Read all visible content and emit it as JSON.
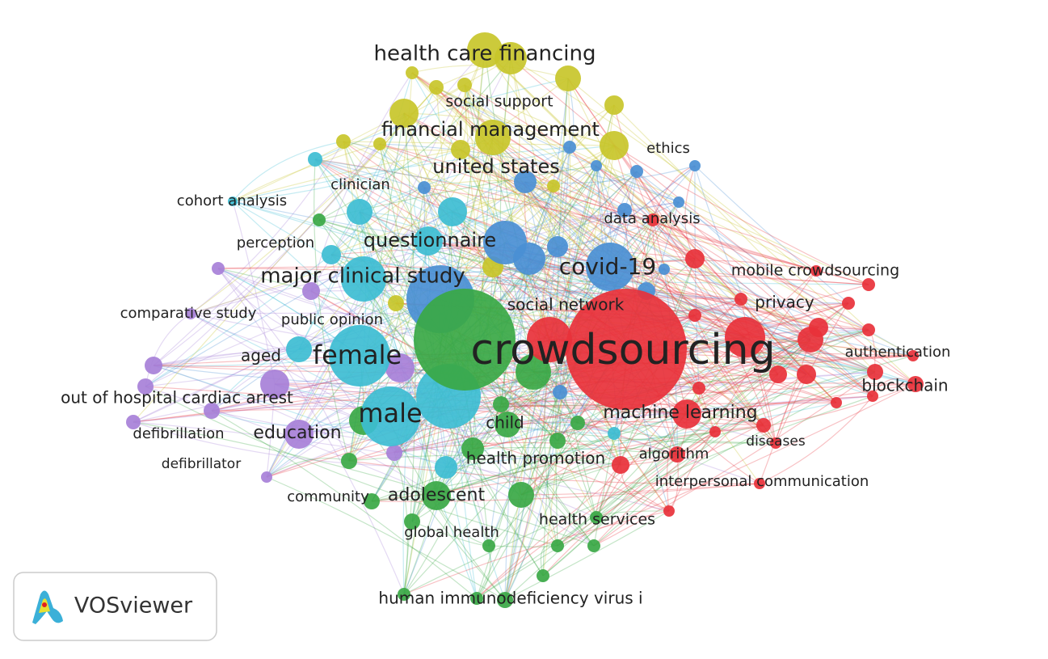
{
  "network": {
    "nodes": [
      {
        "label": "health care financing"
      },
      {
        "label": "social support"
      },
      {
        "label": "financial management"
      },
      {
        "label": "ethics"
      },
      {
        "label": "united states"
      },
      {
        "label": "clinician"
      },
      {
        "label": "cohort analysis"
      },
      {
        "label": "data analysis"
      },
      {
        "label": "perception"
      },
      {
        "label": "questionnaire"
      },
      {
        "label": "mobile crowdsourcing"
      },
      {
        "label": "covid-19"
      },
      {
        "label": "major clinical study"
      },
      {
        "label": "social network"
      },
      {
        "label": "privacy"
      },
      {
        "label": "comparative study"
      },
      {
        "label": "public opinion"
      },
      {
        "label": "crowdsourcing"
      },
      {
        "label": "authentication"
      },
      {
        "label": "female"
      },
      {
        "label": "aged"
      },
      {
        "label": "blockchain"
      },
      {
        "label": "out of hospital cardiac arrest"
      },
      {
        "label": "male"
      },
      {
        "label": "machine learning"
      },
      {
        "label": "child"
      },
      {
        "label": "education"
      },
      {
        "label": "defibrillation"
      },
      {
        "label": "diseases"
      },
      {
        "label": "algorithm"
      },
      {
        "label": "health promotion"
      },
      {
        "label": "defibrillator"
      },
      {
        "label": "interpersonal communication"
      },
      {
        "label": "community"
      },
      {
        "label": "adolescent"
      },
      {
        "label": "health services"
      },
      {
        "label": "global health"
      },
      {
        "label": "human immunodeficiency virus i"
      }
    ]
  },
  "logo": {
    "text": "VOSviewer"
  }
}
